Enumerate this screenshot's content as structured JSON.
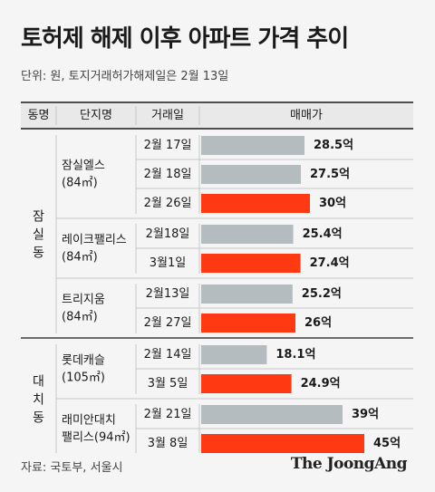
{
  "title": "토허제 해제 이후 아파트 가격 추이",
  "subtitle": "단위: 원, 토지거래허가해제일은 2월 13일",
  "source": "자료: 국토부, 서울시",
  "logo": "The JoongAng",
  "colors": {
    "before": "#b4bcc0",
    "after": "#ff3a12",
    "line": "#1a1a1a",
    "divider": "#c8c8c8"
  },
  "chart_data": {
    "type": "bar",
    "orientation": "horizontal",
    "columns": [
      "동명",
      "단지명",
      "거래일",
      "매매가"
    ],
    "value_unit": "억",
    "xlim": [
      0,
      45
    ],
    "groups": [
      {
        "district": "잠실동",
        "complexes": [
          {
            "name_lines": [
              "잠실엘스",
              "(84㎡)"
            ],
            "rows": [
              {
                "date": "2월 17일",
                "value": 28.5,
                "label": "28.5억",
                "after": false
              },
              {
                "date": "2월 18일",
                "value": 27.5,
                "label": "27.5억",
                "after": false
              },
              {
                "date": "2월 26일",
                "value": 30,
                "label": "30억",
                "after": true
              }
            ]
          },
          {
            "name_lines": [
              "레이크팰리스",
              "(84㎡)"
            ],
            "rows": [
              {
                "date": "2월18일",
                "value": 25.4,
                "label": "25.4억",
                "after": false
              },
              {
                "date": "3월1일",
                "value": 27.4,
                "label": "27.4억",
                "after": true
              }
            ]
          },
          {
            "name_lines": [
              "트리지움",
              "(84㎡)"
            ],
            "rows": [
              {
                "date": "2월13일",
                "value": 25.2,
                "label": "25.2억",
                "after": false
              },
              {
                "date": "2월 27일",
                "value": 26,
                "label": "26억",
                "after": true
              }
            ]
          }
        ]
      },
      {
        "district": "대치동",
        "complexes": [
          {
            "name_lines": [
              "롯데캐슬",
              "(105㎡)"
            ],
            "rows": [
              {
                "date": "2월 14일",
                "value": 18.1,
                "label": "18.1억",
                "after": false
              },
              {
                "date": "3월 5일",
                "value": 24.9,
                "label": "24.9억",
                "after": true
              }
            ]
          },
          {
            "name_lines": [
              "래미안대치",
              "팰리스(94㎡)"
            ],
            "rows": [
              {
                "date": "2월 21일",
                "value": 39,
                "label": "39억",
                "after": false
              },
              {
                "date": "3월 8일",
                "value": 45,
                "label": "45억",
                "after": true
              }
            ]
          }
        ]
      }
    ]
  }
}
